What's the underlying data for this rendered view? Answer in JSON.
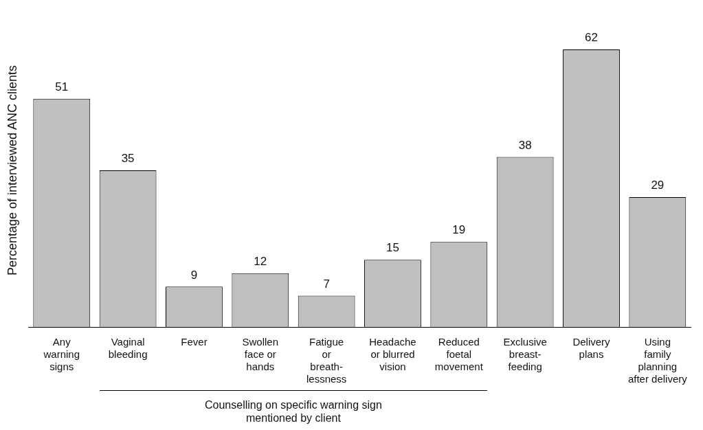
{
  "chart_data": {
    "type": "bar",
    "ylabel": "Percentage of interviewed ANC clients",
    "categories": [
      "Any\nwarning\nsigns",
      "Vaginal\nbleeding",
      "Fever",
      "Swollen\nface or\nhands",
      "Fatigue\nor\nbreath-\nlessness",
      "Headache\nor blurred\nvision",
      "Reduced\nfoetal\nmovement",
      "Exclusive\nbreast-\nfeeding",
      "Delivery\nplans",
      "Using\nfamily\nplanning\nafter delivery"
    ],
    "values": [
      51,
      35,
      9,
      12,
      7,
      15,
      19,
      38,
      62,
      29
    ],
    "color": "#bfbfbf",
    "data_labels": true,
    "grid": false,
    "legend": false,
    "annotations": [
      "Counselling on specific warning sign\nmentioned by client"
    ]
  }
}
